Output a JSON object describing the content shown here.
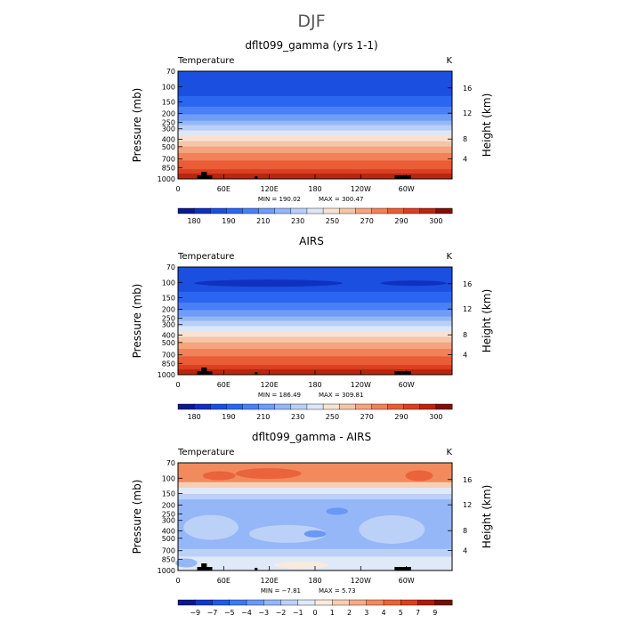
{
  "title": "DJF",
  "chart_data": [
    {
      "type": "contour",
      "title": "dflt099_gamma (yrs 1-1)",
      "left_label": "Temperature",
      "right_label": "K",
      "ylabel": "Pressure (mb)",
      "y2label": "Height (km)",
      "x_ticks": [
        "0",
        "60E",
        "120E",
        "180",
        "120W",
        "60W"
      ],
      "y_ticks": [
        "70",
        "100",
        "150",
        "200",
        "250",
        "300",
        "400",
        "500",
        "700",
        "850",
        "1000"
      ],
      "y2_ticks": [
        "16",
        "12",
        "8",
        "4"
      ],
      "min_label": "MIN = 190.02",
      "max_label": "MAX = 300.47",
      "colorbar_labels": [
        "180",
        "190",
        "210",
        "230",
        "250",
        "270",
        "290",
        "300"
      ],
      "field": "temperature_model"
    },
    {
      "type": "contour",
      "title": "AIRS",
      "left_label": "Temperature",
      "right_label": "K",
      "ylabel": "Pressure (mb)",
      "y2label": "Height (km)",
      "x_ticks": [
        "0",
        "60E",
        "120E",
        "180",
        "120W",
        "60W"
      ],
      "y_ticks": [
        "70",
        "100",
        "150",
        "200",
        "250",
        "300",
        "400",
        "500",
        "700",
        "850",
        "1000"
      ],
      "y2_ticks": [
        "16",
        "12",
        "8",
        "4"
      ],
      "min_label": "MIN = 186.49",
      "max_label": "MAX = 309.81",
      "colorbar_labels": [
        "180",
        "190",
        "210",
        "230",
        "250",
        "270",
        "290",
        "300"
      ],
      "field": "temperature_obs"
    },
    {
      "type": "contour",
      "title": "dflt099_gamma - AIRS",
      "left_label": "Temperature",
      "right_label": "K",
      "ylabel": "Pressure (mb)",
      "y2label": "Height (km)",
      "x_ticks": [
        "0",
        "60E",
        "120E",
        "180",
        "120W",
        "60W"
      ],
      "y_ticks": [
        "70",
        "100",
        "150",
        "200",
        "250",
        "300",
        "400",
        "500",
        "700",
        "850",
        "1000"
      ],
      "y2_ticks": [
        "16",
        "12",
        "8",
        "4"
      ],
      "min_label": "MIN = −7.81",
      "max_label": "MAX = 5.73",
      "colorbar_labels": [
        "−9",
        "−7",
        "−5",
        "−4",
        "−3",
        "−2",
        "−1",
        "0",
        "1",
        "2",
        "3",
        "4",
        "5",
        "7",
        "9"
      ],
      "field": "difference"
    }
  ],
  "temperature_colors": [
    "#0a1a8c",
    "#1030c0",
    "#1a4fe0",
    "#2a66f0",
    "#4a80f5",
    "#6e9cf7",
    "#93b7f8",
    "#b8cff8",
    "#dde7f7",
    "#f7e2d2",
    "#f6c5a8",
    "#f4a47e",
    "#f08158",
    "#ea5c35",
    "#d93f20",
    "#b8260f",
    "#7e1004"
  ],
  "difference_colors": [
    "#0a1a8c",
    "#1238c8",
    "#1f5be8",
    "#3f79f2",
    "#6a98f6",
    "#95b7f8",
    "#bcd1f8",
    "#dfe9f8",
    "#faeadc",
    "#f8cfb2",
    "#f5ac85",
    "#f18a5d",
    "#ea633a",
    "#d8401f",
    "#a91e08",
    "#701000"
  ],
  "terrain_color": "#000000"
}
